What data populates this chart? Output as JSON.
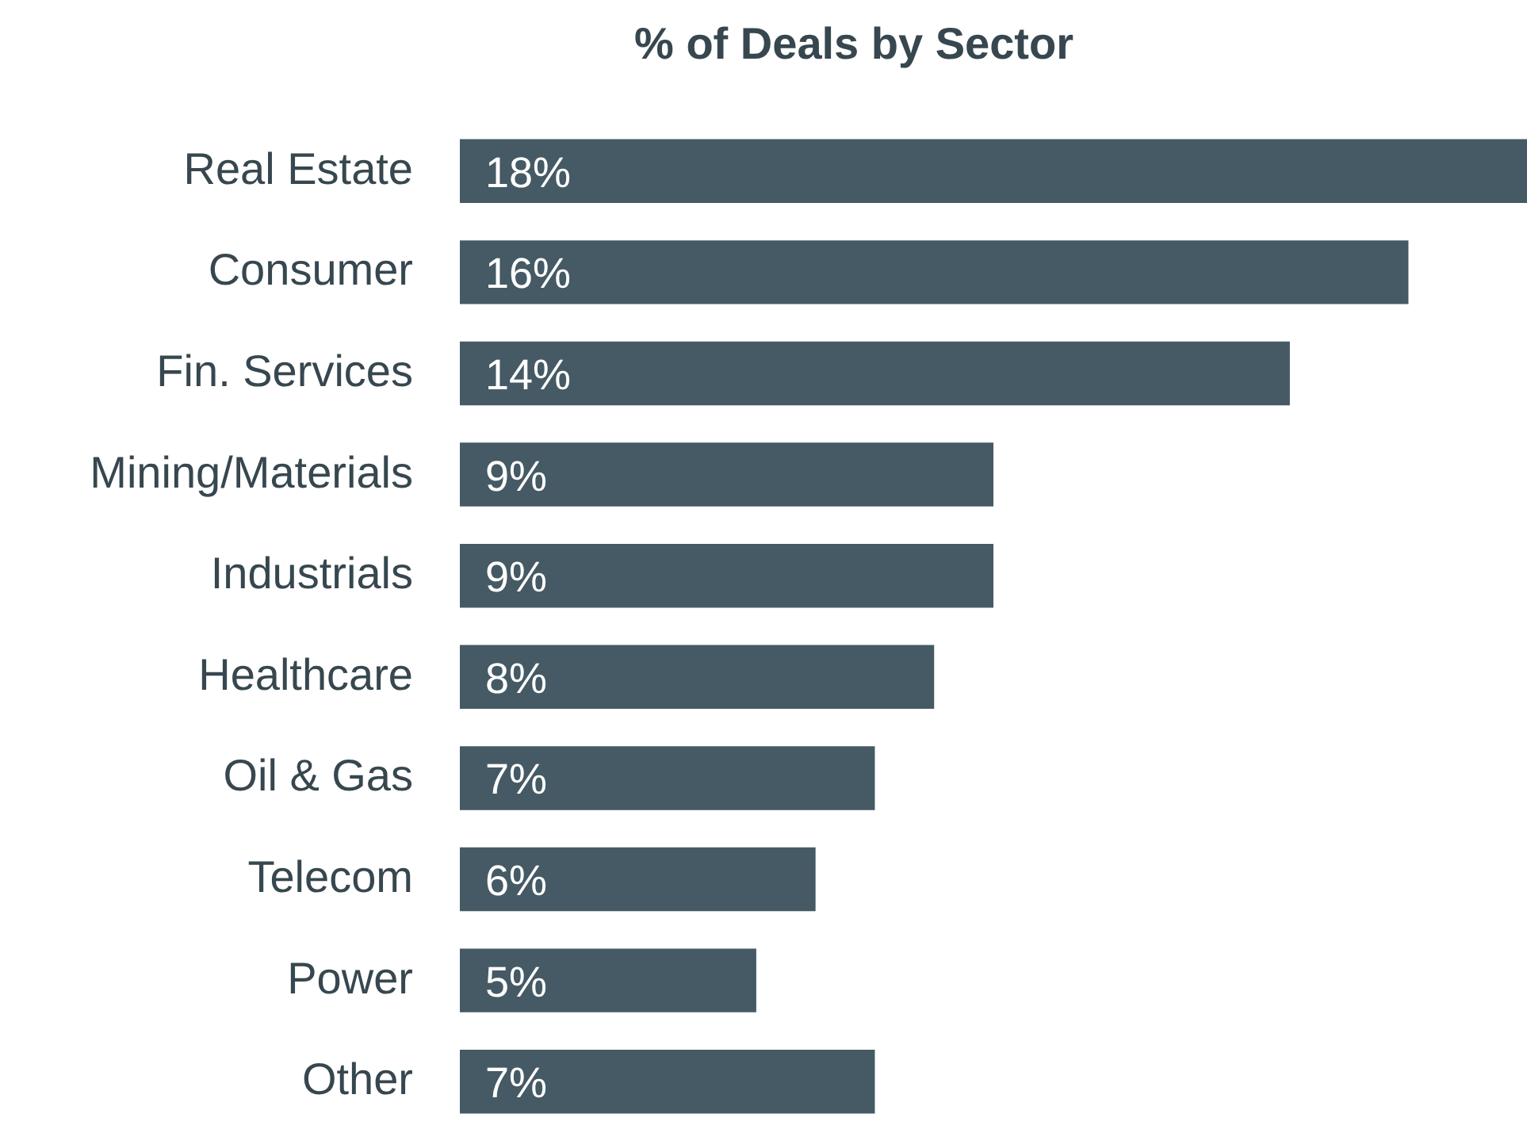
{
  "chart_data": {
    "type": "bar",
    "orientation": "horizontal",
    "title": "% of Deals by Sector",
    "categories": [
      "Real Estate",
      "Consumer",
      "Fin. Services",
      "Mining/Materials",
      "Industrials",
      "Healthcare",
      "Oil & Gas",
      "Telecom",
      "Power",
      "Other"
    ],
    "values": [
      18,
      16,
      14,
      9,
      9,
      8,
      7,
      6,
      5,
      7
    ],
    "value_labels": [
      "18%",
      "16%",
      "14%",
      "9%",
      "9%",
      "8%",
      "7%",
      "6%",
      "5%",
      "7%"
    ],
    "color": "#455a64",
    "grid": false
  }
}
